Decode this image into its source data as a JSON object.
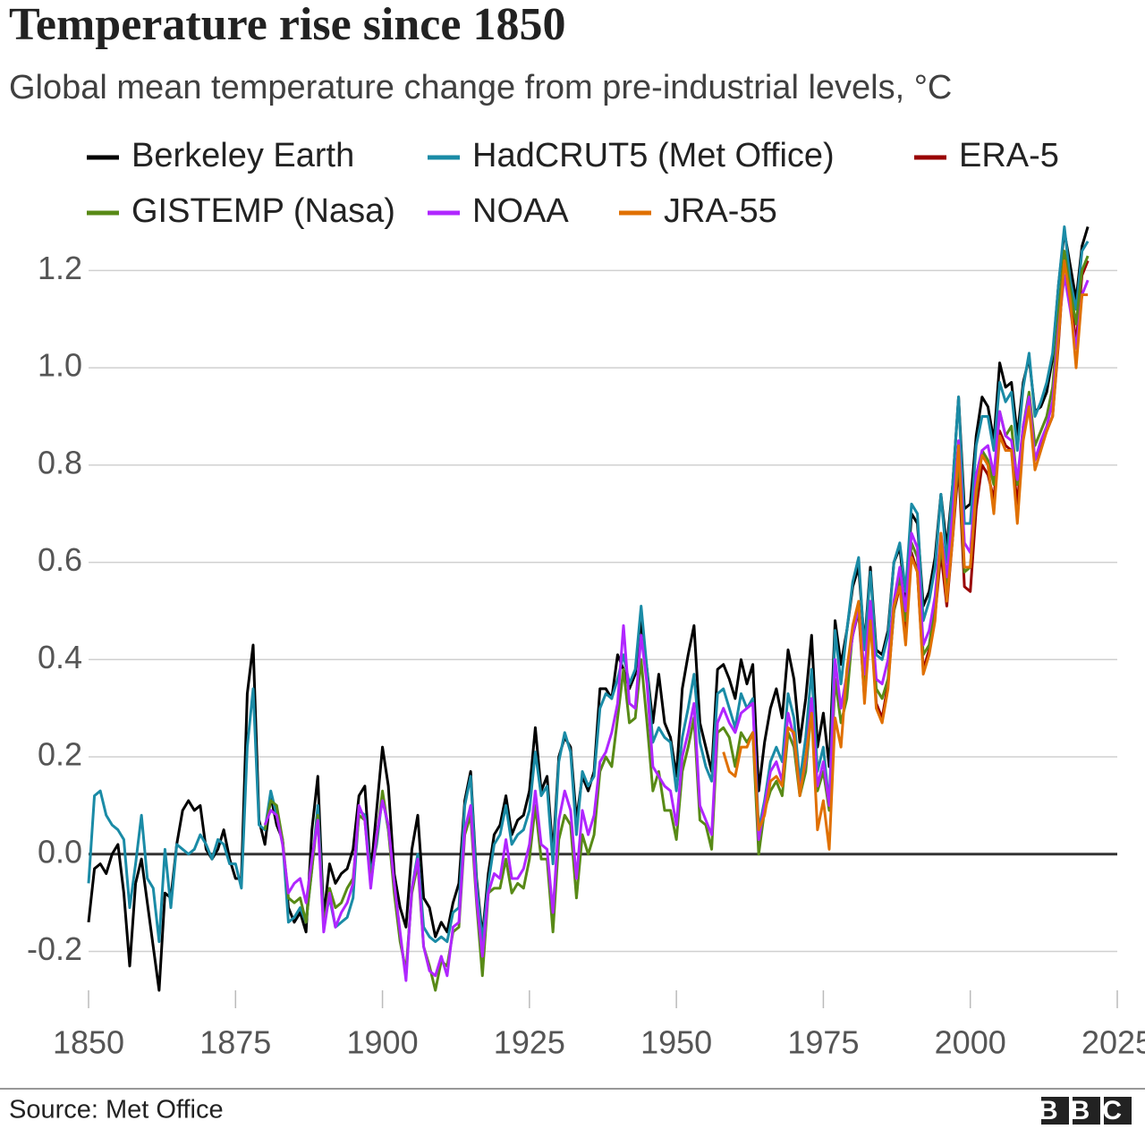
{
  "chart_data": {
    "type": "line",
    "title": "Temperature rise since 1850",
    "subtitle": "Global mean temperature change from pre-industrial levels, °C",
    "source": "Source: Met Office",
    "logo": "BBC",
    "grid": true,
    "xlim": [
      1850,
      2025
    ],
    "xticks": [
      1850,
      1875,
      1900,
      1925,
      1950,
      1975,
      2000,
      2025
    ],
    "ylim": [
      -0.28,
      1.3
    ],
    "yticks": [
      -0.2,
      {
        "value": 0,
        "label": "0.0"
      },
      0.2,
      0.4,
      0.6,
      0.8,
      {
        "value": 1,
        "label": "1.0"
      },
      1.2
    ],
    "x": [
      1850,
      1851,
      1852,
      1853,
      1854,
      1855,
      1856,
      1857,
      1858,
      1859,
      1860,
      1861,
      1862,
      1863,
      1864,
      1865,
      1866,
      1867,
      1868,
      1869,
      1870,
      1871,
      1872,
      1873,
      1874,
      1875,
      1876,
      1877,
      1878,
      1879,
      1880,
      1881,
      1882,
      1883,
      1884,
      1885,
      1886,
      1887,
      1888,
      1889,
      1890,
      1891,
      1892,
      1893,
      1894,
      1895,
      1896,
      1897,
      1898,
      1899,
      1900,
      1901,
      1902,
      1903,
      1904,
      1905,
      1906,
      1907,
      1908,
      1909,
      1910,
      1911,
      1912,
      1913,
      1914,
      1915,
      1916,
      1917,
      1918,
      1919,
      1920,
      1921,
      1922,
      1923,
      1924,
      1925,
      1926,
      1927,
      1928,
      1929,
      1930,
      1931,
      1932,
      1933,
      1934,
      1935,
      1936,
      1937,
      1938,
      1939,
      1940,
      1941,
      1942,
      1943,
      1944,
      1945,
      1946,
      1947,
      1948,
      1949,
      1950,
      1951,
      1952,
      1953,
      1954,
      1955,
      1956,
      1957,
      1958,
      1959,
      1960,
      1961,
      1962,
      1963,
      1964,
      1965,
      1966,
      1967,
      1968,
      1969,
      1970,
      1971,
      1972,
      1973,
      1974,
      1975,
      1976,
      1977,
      1978,
      1979,
      1980,
      1981,
      1982,
      1983,
      1984,
      1985,
      1986,
      1987,
      1988,
      1989,
      1990,
      1991,
      1992,
      1993,
      1994,
      1995,
      1996,
      1997,
      1998,
      1999,
      2000,
      2001,
      2002,
      2003,
      2004,
      2005,
      2006,
      2007,
      2008,
      2009,
      2010,
      2011,
      2012,
      2013,
      2014,
      2015,
      2016,
      2017,
      2018,
      2019,
      2020
    ],
    "series": [
      {
        "name": "Berkeley Earth",
        "color": "#000000",
        "values": [
          -0.14,
          -0.03,
          -0.02,
          -0.04,
          0.0,
          0.02,
          -0.08,
          -0.23,
          -0.06,
          -0.01,
          -0.1,
          -0.19,
          -0.28,
          -0.08,
          -0.09,
          0.02,
          0.09,
          0.11,
          0.09,
          0.1,
          0.01,
          -0.01,
          0.01,
          0.05,
          -0.01,
          -0.05,
          -0.05,
          0.33,
          0.43,
          0.07,
          0.02,
          0.12,
          0.06,
          0.03,
          -0.11,
          -0.14,
          -0.12,
          -0.16,
          0.05,
          0.16,
          -0.13,
          -0.02,
          -0.06,
          -0.04,
          -0.03,
          0.01,
          0.12,
          0.14,
          -0.04,
          0.09,
          0.22,
          0.14,
          -0.04,
          -0.11,
          -0.15,
          0.01,
          0.08,
          -0.09,
          -0.11,
          -0.17,
          -0.14,
          -0.16,
          -0.1,
          -0.06,
          0.11,
          0.17,
          -0.05,
          -0.17,
          -0.04,
          0.04,
          0.06,
          0.12,
          0.04,
          0.07,
          0.08,
          0.13,
          0.26,
          0.13,
          0.16,
          0.0,
          0.2,
          0.24,
          0.22,
          0.07,
          0.16,
          0.13,
          0.17,
          0.34,
          0.34,
          0.32,
          0.41,
          0.38,
          0.34,
          0.37,
          0.48,
          0.38,
          0.27,
          0.37,
          0.27,
          0.24,
          0.16,
          0.34,
          0.41,
          0.47,
          0.27,
          0.22,
          0.17,
          0.38,
          0.39,
          0.36,
          0.32,
          0.4,
          0.35,
          0.39,
          0.13,
          0.23,
          0.3,
          0.34,
          0.28,
          0.42,
          0.36,
          0.23,
          0.32,
          0.45,
          0.22,
          0.29,
          0.18,
          0.48,
          0.39,
          0.46,
          0.55,
          0.59,
          0.43,
          0.59,
          0.42,
          0.41,
          0.46,
          0.6,
          0.63,
          0.52,
          0.7,
          0.68,
          0.51,
          0.54,
          0.61,
          0.74,
          0.63,
          0.76,
          0.94,
          0.71,
          0.72,
          0.86,
          0.94,
          0.92,
          0.85,
          1.01,
          0.96,
          0.97,
          0.86,
          0.97,
          1.02,
          0.91,
          0.92,
          0.95,
          1.02,
          1.17,
          1.28,
          1.21,
          1.14,
          1.25,
          1.29
        ]
      },
      {
        "name": "HadCRUT5 (Met Office)",
        "color": "#1a8ba6",
        "values": [
          -0.06,
          0.12,
          0.13,
          0.08,
          0.06,
          0.05,
          0.03,
          -0.11,
          -0.02,
          0.08,
          -0.05,
          -0.07,
          -0.18,
          0.01,
          -0.11,
          0.02,
          0.01,
          0.0,
          0.01,
          0.04,
          0.02,
          -0.01,
          0.03,
          0.02,
          -0.02,
          -0.02,
          -0.07,
          0.22,
          0.34,
          0.06,
          0.05,
          0.13,
          0.08,
          0.03,
          -0.14,
          -0.13,
          -0.11,
          -0.14,
          -0.03,
          0.1,
          -0.14,
          -0.09,
          -0.15,
          -0.14,
          -0.13,
          -0.09,
          0.09,
          0.08,
          -0.04,
          0.02,
          0.12,
          0.05,
          -0.06,
          -0.17,
          -0.25,
          -0.07,
          0.0,
          -0.15,
          -0.17,
          -0.18,
          -0.17,
          -0.18,
          -0.12,
          -0.11,
          0.1,
          0.16,
          -0.06,
          -0.18,
          -0.06,
          0.02,
          0.04,
          0.1,
          0.02,
          0.04,
          0.05,
          0.09,
          0.21,
          0.12,
          0.14,
          -0.02,
          0.19,
          0.25,
          0.21,
          0.04,
          0.17,
          0.14,
          0.16,
          0.3,
          0.33,
          0.32,
          0.36,
          0.41,
          0.35,
          0.38,
          0.51,
          0.38,
          0.23,
          0.26,
          0.24,
          0.23,
          0.13,
          0.24,
          0.3,
          0.37,
          0.23,
          0.18,
          0.15,
          0.33,
          0.34,
          0.3,
          0.26,
          0.33,
          0.3,
          0.32,
          0.05,
          0.11,
          0.19,
          0.22,
          0.19,
          0.33,
          0.28,
          0.15,
          0.24,
          0.38,
          0.17,
          0.22,
          0.1,
          0.46,
          0.35,
          0.46,
          0.56,
          0.61,
          0.42,
          0.58,
          0.41,
          0.4,
          0.45,
          0.6,
          0.64,
          0.54,
          0.72,
          0.7,
          0.48,
          0.52,
          0.59,
          0.74,
          0.6,
          0.76,
          0.94,
          0.68,
          0.68,
          0.84,
          0.9,
          0.9,
          0.83,
          0.97,
          0.93,
          0.95,
          0.83,
          0.96,
          1.03,
          0.9,
          0.93,
          0.97,
          1.03,
          1.17,
          1.29,
          1.18,
          1.12,
          1.24,
          1.26
        ]
      },
      {
        "name": "ERA-5",
        "color": "#990000",
        "values": [
          null,
          null,
          null,
          null,
          null,
          null,
          null,
          null,
          null,
          null,
          null,
          null,
          null,
          null,
          null,
          null,
          null,
          null,
          null,
          null,
          null,
          null,
          null,
          null,
          null,
          null,
          null,
          null,
          null,
          null,
          null,
          null,
          null,
          null,
          null,
          null,
          null,
          null,
          null,
          null,
          null,
          null,
          null,
          null,
          null,
          null,
          null,
          null,
          null,
          null,
          null,
          null,
          null,
          null,
          null,
          null,
          null,
          null,
          null,
          null,
          null,
          null,
          null,
          null,
          null,
          null,
          null,
          null,
          null,
          null,
          null,
          null,
          null,
          null,
          null,
          null,
          null,
          null,
          null,
          null,
          null,
          null,
          null,
          null,
          null,
          null,
          null,
          null,
          null,
          null,
          null,
          null,
          null,
          null,
          null,
          null,
          null,
          null,
          null,
          null,
          null,
          null,
          null,
          null,
          null,
          null,
          null,
          null,
          null,
          null,
          null,
          null,
          null,
          null,
          null,
          null,
          null,
          null,
          null,
          null,
          null,
          null,
          null,
          null,
          null,
          null,
          null,
          null,
          null,
          0.37,
          0.45,
          0.5,
          0.32,
          0.49,
          0.31,
          0.28,
          0.35,
          0.5,
          0.55,
          0.45,
          0.62,
          0.58,
          0.38,
          0.42,
          0.49,
          0.62,
          0.51,
          0.65,
          0.8,
          0.55,
          0.54,
          0.71,
          0.8,
          0.78,
          0.73,
          0.87,
          0.84,
          0.83,
          0.72,
          0.86,
          0.93,
          0.81,
          0.84,
          0.87,
          0.9,
          1.05,
          1.23,
          1.15,
          1.05,
          1.19,
          1.22
        ]
      },
      {
        "name": "GISTEMP (Nasa)",
        "color": "#588a16",
        "values": [
          null,
          null,
          null,
          null,
          null,
          null,
          null,
          null,
          null,
          null,
          null,
          null,
          null,
          null,
          null,
          null,
          null,
          null,
          null,
          null,
          null,
          null,
          null,
          null,
          null,
          null,
          null,
          null,
          null,
          null,
          0.05,
          0.11,
          0.1,
          0.03,
          -0.09,
          -0.1,
          -0.09,
          -0.14,
          -0.03,
          0.08,
          -0.15,
          -0.07,
          -0.11,
          -0.1,
          -0.07,
          -0.05,
          0.08,
          0.07,
          -0.06,
          0.03,
          0.13,
          0.05,
          -0.08,
          -0.18,
          -0.24,
          -0.08,
          -0.02,
          -0.19,
          -0.23,
          -0.28,
          -0.22,
          -0.23,
          -0.16,
          -0.15,
          0.04,
          0.08,
          -0.1,
          -0.25,
          -0.08,
          -0.07,
          -0.07,
          -0.01,
          -0.08,
          -0.06,
          -0.07,
          -0.01,
          0.1,
          -0.01,
          -0.01,
          -0.16,
          0.03,
          0.08,
          0.06,
          -0.09,
          0.04,
          0.0,
          0.04,
          0.17,
          0.2,
          0.18,
          0.28,
          0.38,
          0.27,
          0.28,
          0.4,
          0.27,
          0.13,
          0.17,
          0.09,
          0.09,
          0.03,
          0.17,
          0.22,
          0.28,
          0.07,
          0.06,
          0.01,
          0.25,
          0.26,
          0.24,
          0.18,
          0.25,
          0.23,
          0.25,
          0.0,
          0.09,
          0.13,
          0.15,
          0.12,
          0.25,
          0.22,
          0.12,
          0.17,
          0.3,
          0.13,
          0.17,
          0.09,
          0.36,
          0.27,
          0.32,
          0.46,
          0.5,
          0.35,
          0.52,
          0.34,
          0.32,
          0.36,
          0.5,
          0.57,
          0.48,
          0.64,
          0.61,
          0.41,
          0.43,
          0.51,
          0.63,
          0.55,
          0.66,
          0.82,
          0.58,
          0.59,
          0.74,
          0.83,
          0.81,
          0.76,
          0.91,
          0.86,
          0.88,
          0.76,
          0.88,
          0.95,
          0.84,
          0.87,
          0.9,
          0.96,
          1.11,
          1.24,
          1.16,
          1.09,
          1.2,
          1.23
        ]
      },
      {
        "name": "NOAA",
        "color": "#b026ff",
        "values": [
          null,
          null,
          null,
          null,
          null,
          null,
          null,
          null,
          null,
          null,
          null,
          null,
          null,
          null,
          null,
          null,
          null,
          null,
          null,
          null,
          null,
          null,
          null,
          null,
          null,
          null,
          null,
          null,
          null,
          null,
          0.06,
          0.09,
          0.08,
          0.02,
          -0.08,
          -0.06,
          -0.05,
          -0.1,
          -0.01,
          0.07,
          -0.16,
          -0.08,
          -0.15,
          -0.12,
          -0.1,
          -0.06,
          0.1,
          0.07,
          -0.07,
          0.04,
          0.11,
          0.06,
          -0.06,
          -0.16,
          -0.26,
          -0.07,
          -0.01,
          -0.19,
          -0.24,
          -0.25,
          -0.21,
          -0.25,
          -0.15,
          -0.14,
          0.05,
          0.1,
          -0.09,
          -0.21,
          -0.08,
          -0.04,
          -0.05,
          0.03,
          -0.05,
          -0.05,
          -0.03,
          0.02,
          0.13,
          0.02,
          0.01,
          -0.12,
          0.07,
          0.13,
          0.09,
          -0.05,
          0.09,
          0.04,
          0.08,
          0.19,
          0.21,
          0.25,
          0.31,
          0.47,
          0.31,
          0.3,
          0.45,
          0.35,
          0.18,
          0.16,
          0.14,
          0.13,
          0.06,
          0.2,
          0.25,
          0.31,
          0.1,
          0.07,
          0.04,
          0.27,
          0.3,
          0.27,
          0.25,
          0.29,
          0.3,
          0.31,
          0.03,
          0.1,
          0.17,
          0.19,
          0.15,
          0.29,
          0.24,
          0.13,
          0.19,
          0.32,
          0.14,
          0.19,
          0.1,
          0.4,
          0.3,
          0.37,
          0.45,
          0.51,
          0.37,
          0.52,
          0.36,
          0.35,
          0.4,
          0.52,
          0.59,
          0.5,
          0.66,
          0.63,
          0.43,
          0.46,
          0.53,
          0.66,
          0.57,
          0.7,
          0.85,
          0.64,
          0.62,
          0.78,
          0.83,
          0.84,
          0.78,
          0.91,
          0.86,
          0.85,
          0.77,
          0.88,
          0.94,
          0.81,
          0.85,
          0.88,
          0.93,
          1.08,
          1.19,
          1.12,
          1.04,
          1.15,
          1.18
        ]
      },
      {
        "name": "JRA-55",
        "color": "#e07000",
        "values": [
          null,
          null,
          null,
          null,
          null,
          null,
          null,
          null,
          null,
          null,
          null,
          null,
          null,
          null,
          null,
          null,
          null,
          null,
          null,
          null,
          null,
          null,
          null,
          null,
          null,
          null,
          null,
          null,
          null,
          null,
          null,
          null,
          null,
          null,
          null,
          null,
          null,
          null,
          null,
          null,
          null,
          null,
          null,
          null,
          null,
          null,
          null,
          null,
          null,
          null,
          null,
          null,
          null,
          null,
          null,
          null,
          null,
          null,
          null,
          null,
          null,
          null,
          null,
          null,
          null,
          null,
          null,
          null,
          null,
          null,
          null,
          null,
          null,
          null,
          null,
          null,
          null,
          null,
          null,
          null,
          null,
          null,
          null,
          null,
          null,
          null,
          null,
          null,
          null,
          null,
          null,
          null,
          null,
          null,
          null,
          null,
          null,
          null,
          null,
          null,
          null,
          null,
          null,
          null,
          null,
          null,
          null,
          null,
          0.21,
          0.17,
          0.16,
          0.22,
          0.22,
          0.25,
          0.05,
          0.08,
          0.15,
          0.16,
          0.14,
          0.26,
          0.25,
          0.12,
          0.2,
          0.29,
          0.05,
          0.11,
          0.01,
          0.28,
          0.22,
          0.38,
          0.47,
          0.52,
          0.31,
          0.48,
          0.3,
          0.27,
          0.34,
          0.51,
          0.55,
          0.43,
          0.61,
          0.58,
          0.37,
          0.41,
          0.48,
          0.66,
          0.52,
          0.65,
          0.84,
          0.59,
          0.59,
          0.75,
          0.82,
          0.8,
          0.7,
          0.86,
          0.83,
          0.83,
          0.68,
          0.85,
          0.92,
          0.79,
          0.83,
          0.87,
          0.9,
          1.06,
          1.22,
          1.14,
          1.0,
          1.15,
          1.15
        ]
      }
    ]
  }
}
